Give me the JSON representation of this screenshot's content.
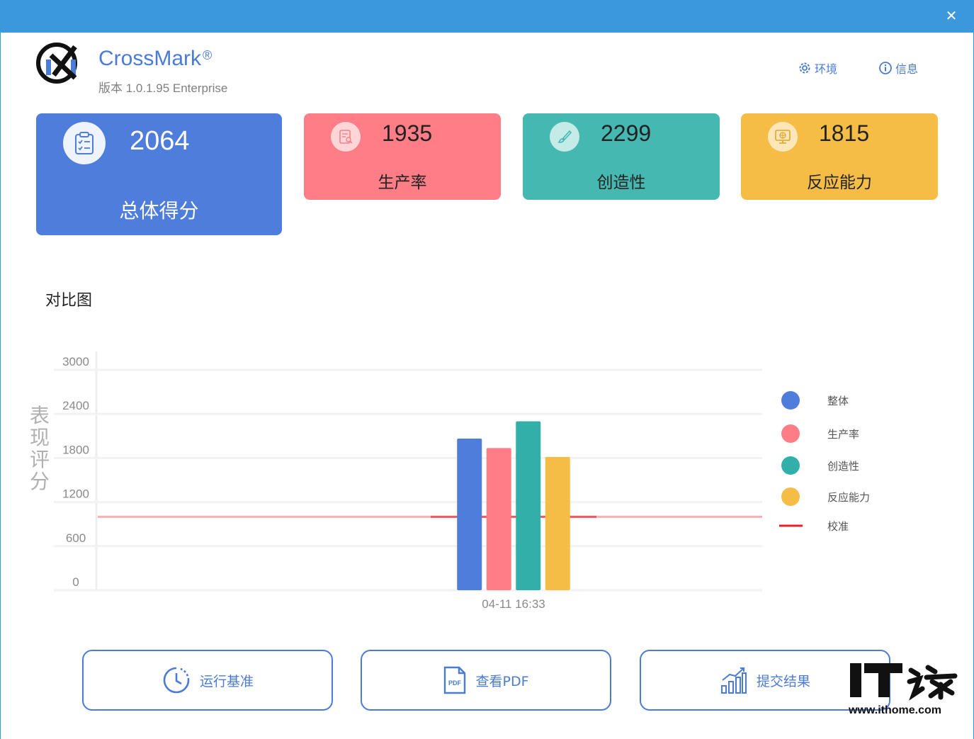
{
  "window": {
    "close_glyph": "✕"
  },
  "app": {
    "name": "CrossMark",
    "registered": "®",
    "version_line": "版本 1.0.1.95 Enterprise"
  },
  "header_links": {
    "environment": {
      "label": "环境",
      "icon": "gear-icon"
    },
    "info": {
      "label": "信息",
      "icon": "info-icon"
    }
  },
  "scores": {
    "overall": {
      "value": "2064",
      "label": "总体得分",
      "color": "#4f7ddb",
      "icon": "clipboard-check-icon"
    },
    "productivity": {
      "value": "1935",
      "label": "生产率",
      "color": "#fe7d87",
      "icon": "document-search-icon"
    },
    "creativity": {
      "value": "2299",
      "label": "创造性",
      "color": "#45b8b1",
      "icon": "brush-icon"
    },
    "responsiveness": {
      "value": "1815",
      "label": "反应能力",
      "color": "#f5bd45",
      "icon": "monitor-globe-icon"
    }
  },
  "comparison_title": "对比图",
  "chart_data": {
    "type": "bar",
    "ylabel": "表现评分",
    "ylim": [
      0,
      3000
    ],
    "yticks": [
      0,
      600,
      1200,
      1800,
      2400,
      3000
    ],
    "categories": [
      "04-11 16:33"
    ],
    "series": [
      {
        "name": "整体",
        "values": [
          2064
        ],
        "color": "#4f7ddb"
      },
      {
        "name": "生产率",
        "values": [
          1935
        ],
        "color": "#fe7d87"
      },
      {
        "name": "创造性",
        "values": [
          2299
        ],
        "color": "#32afa8"
      },
      {
        "name": "反应能力",
        "values": [
          1815
        ],
        "color": "#f5bd45"
      }
    ],
    "reference_line": {
      "name": "校准",
      "value": 1000,
      "color": "#e8202a"
    },
    "legend_position": "right",
    "grid": true
  },
  "actions": {
    "run": {
      "label": "运行基准",
      "icon": "clock-refresh-icon"
    },
    "pdf": {
      "label": "查看PDF",
      "icon": "pdf-file-icon",
      "badge": "PDF"
    },
    "submit": {
      "label": "提交结果",
      "icon": "bar-growth-icon"
    }
  },
  "watermark": {
    "url": "www.ithome.com",
    "logo_text": "IT之家"
  }
}
